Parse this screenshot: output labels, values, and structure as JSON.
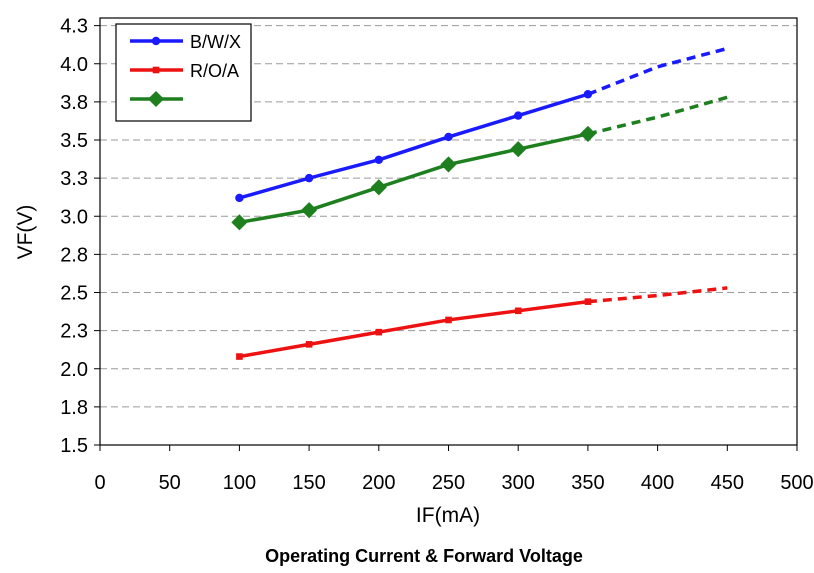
{
  "chart_data": {
    "type": "line",
    "title": "",
    "caption": "Operating Current & Forward Voltage",
    "xlabel": "IF(mA)",
    "ylabel": "VF(V)",
    "xlim": [
      0,
      500
    ],
    "ylim": [
      1.5,
      4.3
    ],
    "x_ticks": [
      0,
      50,
      100,
      150,
      200,
      250,
      300,
      350,
      400,
      450,
      500
    ],
    "x_tick_labels": [
      "0",
      "50",
      "100",
      "150",
      "200",
      "250",
      "300",
      "350",
      "400",
      "450",
      "500"
    ],
    "y_ticks": [
      1.5,
      1.75,
      2.0,
      2.25,
      2.5,
      2.75,
      3.0,
      3.25,
      3.5,
      3.75,
      4.0,
      4.25
    ],
    "y_tick_labels": [
      "1.5",
      "1.8",
      "2.0",
      "2.3",
      "2.5",
      "2.8",
      "3.0",
      "3.3",
      "3.5",
      "3.8",
      "4.0",
      "4.3"
    ],
    "grid": "horizontal dashed",
    "legend_position": "top-left",
    "series": [
      {
        "name": "B/W/X",
        "color": "#1a1aff",
        "marker": "circle",
        "x": [
          100,
          150,
          200,
          250,
          300,
          350
        ],
        "y": [
          3.12,
          3.25,
          3.37,
          3.52,
          3.66,
          3.8
        ],
        "extrapolated_x": [
          350,
          400,
          450
        ],
        "extrapolated_y": [
          3.8,
          3.98,
          4.1
        ]
      },
      {
        "name": "R/O/A",
        "color": "#ee1111",
        "marker": "square",
        "x": [
          100,
          150,
          200,
          250,
          300,
          350
        ],
        "y": [
          2.08,
          2.16,
          2.24,
          2.32,
          2.38,
          2.44
        ],
        "extrapolated_x": [
          350,
          400,
          450
        ],
        "extrapolated_y": [
          2.44,
          2.48,
          2.53
        ]
      },
      {
        "name": "",
        "color": "#1e7f1e",
        "marker": "diamond",
        "x": [
          100,
          150,
          200,
          250,
          300,
          350
        ],
        "y": [
          2.96,
          3.04,
          3.19,
          3.34,
          3.44,
          3.54
        ],
        "extrapolated_x": [
          350,
          400,
          450
        ],
        "extrapolated_y": [
          3.54,
          3.65,
          3.78
        ]
      }
    ]
  }
}
